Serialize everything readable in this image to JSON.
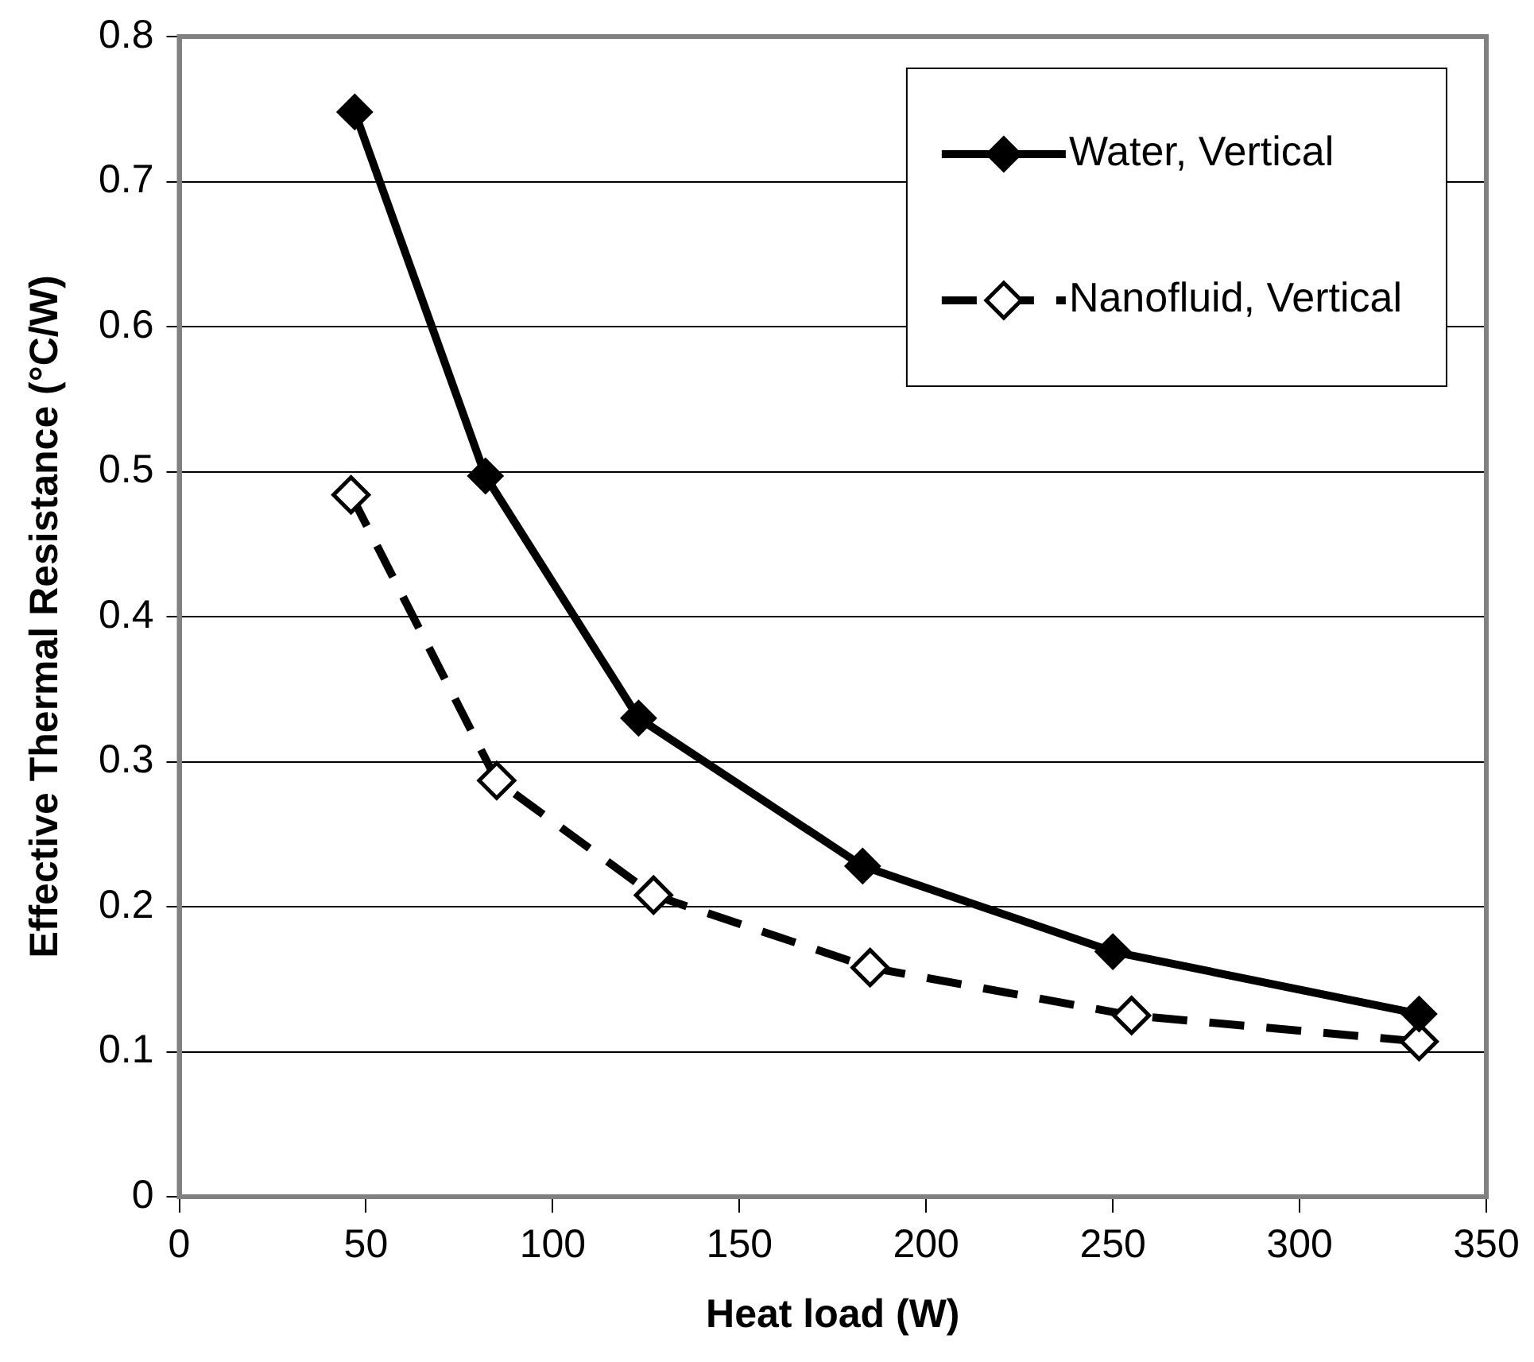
{
  "chart_data": {
    "type": "line",
    "xlabel": "Heat load (W)",
    "ylabel": "Effective Thermal Resistance (°C/W)",
    "xlim": [
      0,
      350
    ],
    "xticks": [
      0,
      50,
      100,
      150,
      200,
      250,
      300,
      350
    ],
    "ylim": [
      0,
      0.8
    ],
    "yticks": [
      0,
      0.1,
      0.2,
      0.3,
      0.4,
      0.5,
      0.6,
      0.7,
      0.8
    ],
    "grid": "y",
    "legend": "top right",
    "marker": "diamond",
    "series": [
      {
        "name": "Water, Vertical",
        "color": "#000000",
        "line_style": "solid",
        "x": [
          47,
          82,
          123,
          183,
          250,
          332
        ],
        "values": [
          0.748,
          0.497,
          0.33,
          0.228,
          0.169,
          0.126
        ]
      },
      {
        "name": "Nanofluid, Vertical",
        "color": "#000000",
        "line_style": "dashed",
        "x": [
          46,
          85,
          127,
          185,
          255,
          332
        ],
        "values": [
          0.484,
          0.287,
          0.208,
          0.158,
          0.125,
          0.107
        ]
      }
    ]
  }
}
